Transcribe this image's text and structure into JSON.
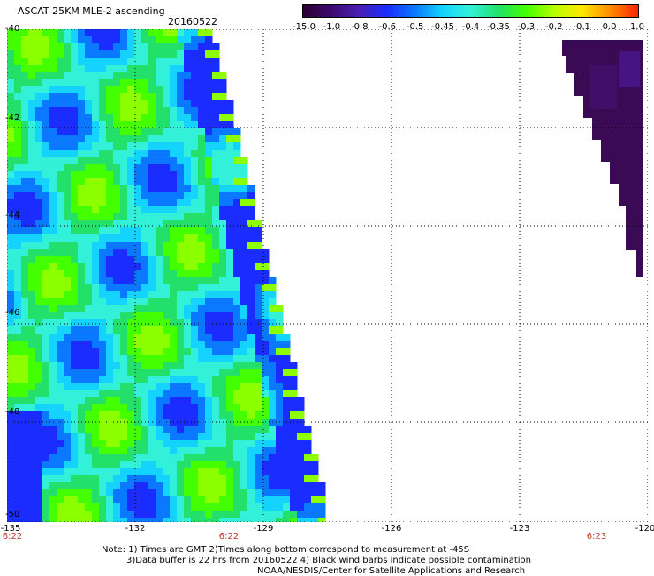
{
  "header": {
    "title": "ASCAT 25KM MLE-2 ascending",
    "date": "20160522"
  },
  "colorbar": {
    "labels": [
      "-15.0",
      "-1.0",
      "-0.8",
      "-0.6",
      "-0.5",
      "-0.45",
      "-0.4",
      "-0.35",
      "-0.3",
      "-0.2",
      "-0.1",
      "0.0",
      "1.0"
    ],
    "colors": [
      "#2a0033",
      "#3c0a6e",
      "#4a1fb0",
      "#1b2cff",
      "#0a78ff",
      "#14d4ff",
      "#33f0d9",
      "#22e06a",
      "#44ff00",
      "#b8ff00",
      "#ffe600",
      "#ff8c00",
      "#ff2200"
    ]
  },
  "axes": {
    "lat_labels": [
      "-40",
      "-42",
      "-44",
      "-46",
      "-48",
      "-50"
    ],
    "lon_labels": [
      "-135",
      "-132",
      "-129",
      "-126",
      "-123",
      "-120"
    ],
    "time_labels": [
      "6:22",
      "6:22",
      "6:23"
    ]
  },
  "notes": {
    "line1": "Note: 1) Times are GMT 2)Times along bottom correspond to measurement at -45S",
    "line2": "3)Data buffer is 22 hrs from 20160522 4) Black wind barbs indicate possible contamination",
    "line3": "NOAA/NESDIS/Center for Satellite Applications and Research"
  }
}
